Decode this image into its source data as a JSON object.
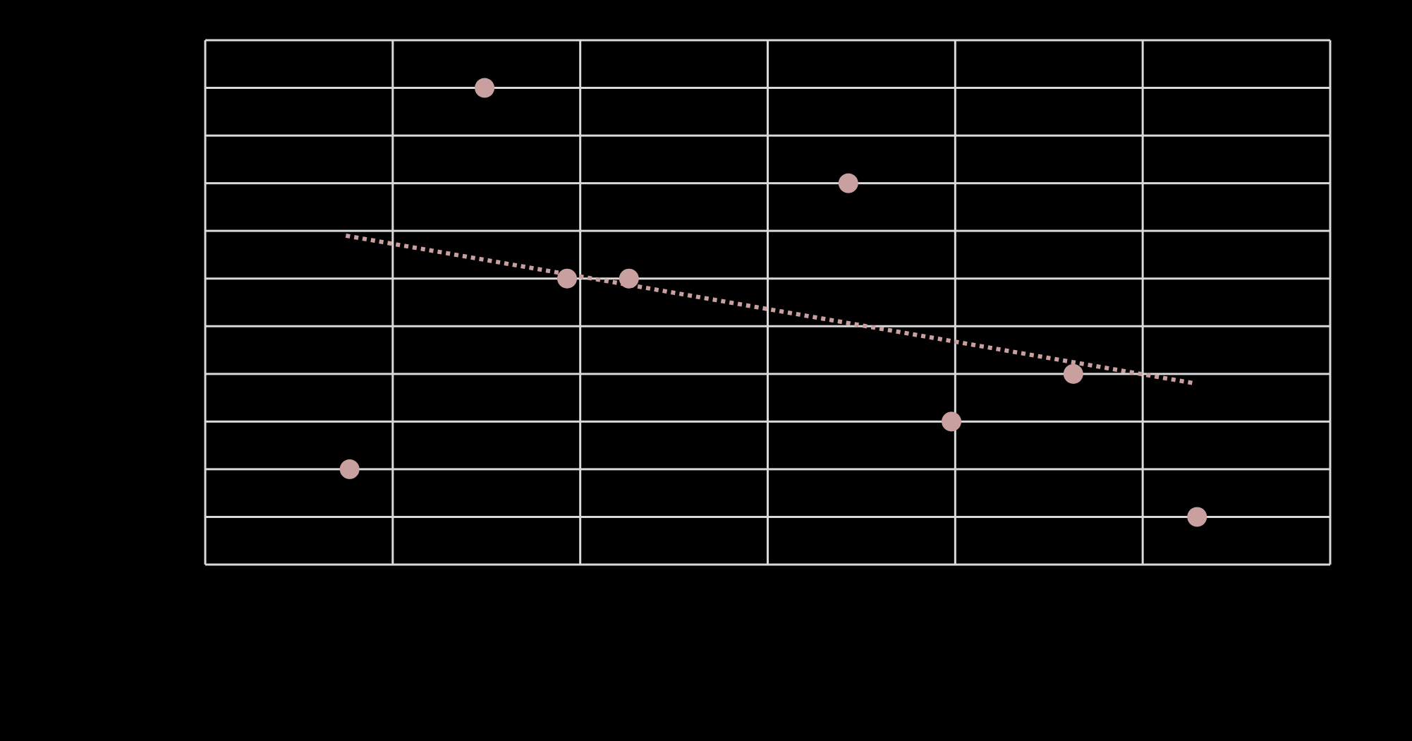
{
  "chart_data": {
    "type": "scatter",
    "title": "",
    "xlabel": "",
    "ylabel": "",
    "x_tick_labels": [
      "",
      "",
      "",
      "",
      "",
      "",
      "",
      ""
    ],
    "y_tick_labels": [
      "",
      "",
      "",
      "",
      "",
      "",
      "",
      "",
      "",
      "",
      "",
      ""
    ],
    "xlim": [
      0,
      6
    ],
    "ylim": [
      0,
      11
    ],
    "grid": true,
    "background_color": "#000000",
    "grid_color": "#d9d9d9",
    "marker_color": "#c9a0a0",
    "trendline_color": "#c9a0a0",
    "points": [
      {
        "x": 0.77,
        "y": 2,
        "label": ""
      },
      {
        "x": 1.49,
        "y": 10,
        "label": ""
      },
      {
        "x": 1.93,
        "y": 6,
        "label": ""
      },
      {
        "x": 2.26,
        "y": 6,
        "label": ""
      },
      {
        "x": 3.43,
        "y": 8,
        "label": ""
      },
      {
        "x": 3.98,
        "y": 3,
        "label": ""
      },
      {
        "x": 4.63,
        "y": 4,
        "label": ""
      },
      {
        "x": 5.29,
        "y": 1,
        "label": ""
      }
    ],
    "trendline": {
      "style": "dotted",
      "x": [
        0.75,
        5.28
      ],
      "y": [
        6.9,
        3.8
      ]
    }
  }
}
